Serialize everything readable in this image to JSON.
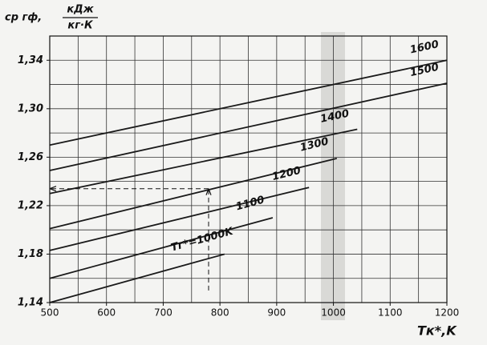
{
  "chart_data": {
    "type": "line",
    "ylabel": "cр гф,",
    "ylabel_unit_top": "кДж",
    "ylabel_unit_bottom": "кг·К",
    "xlabel": "Тк*,K",
    "xlim": [
      500,
      1200
    ],
    "ylim": [
      1.14,
      1.36
    ],
    "xticks": [
      500,
      600,
      700,
      800,
      900,
      1000,
      1100,
      1200
    ],
    "yticks": [
      {
        "value": 1.14,
        "label": "1,14"
      },
      {
        "value": 1.18,
        "label": "1,18"
      },
      {
        "value": 1.22,
        "label": "1,22"
      },
      {
        "value": 1.26,
        "label": "1,26"
      },
      {
        "value": 1.3,
        "label": "1,30"
      },
      {
        "value": 1.34,
        "label": "1,34"
      }
    ],
    "xgrid": [
      500,
      550,
      600,
      650,
      700,
      750,
      800,
      850,
      900,
      950,
      1000,
      1050,
      1100,
      1150,
      1200
    ],
    "ygrid": [
      1.14,
      1.16,
      1.18,
      1.2,
      1.22,
      1.24,
      1.26,
      1.28,
      1.3,
      1.32,
      1.34,
      1.36
    ],
    "grid": true,
    "color": "#1a1a1a",
    "series": [
      {
        "name": "1600",
        "x": [
          500,
          1200
        ],
        "values": [
          1.27,
          1.34
        ]
      },
      {
        "name": "1500",
        "x": [
          500,
          1200
        ],
        "values": [
          1.249,
          1.321
        ]
      },
      {
        "name": "1400",
        "x": [
          500,
          1042
        ],
        "values": [
          1.23,
          1.283
        ]
      },
      {
        "name": "1300",
        "x": [
          500,
          1006
        ],
        "values": [
          1.201,
          1.259
        ]
      },
      {
        "name": "1200",
        "x": [
          500,
          957
        ],
        "values": [
          1.183,
          1.235
        ]
      },
      {
        "name": "1100",
        "x": [
          500,
          893
        ],
        "values": [
          1.16,
          1.21
        ]
      },
      {
        "name": "Тг*=1000K",
        "x": [
          500,
          808
        ],
        "values": [
          1.14,
          1.18
        ]
      }
    ],
    "guides": [
      {
        "x": [
          780,
          500
        ],
        "values": [
          1.234,
          1.234
        ]
      },
      {
        "x": [
          780,
          780
        ],
        "values": [
          1.15,
          1.234
        ]
      }
    ]
  }
}
